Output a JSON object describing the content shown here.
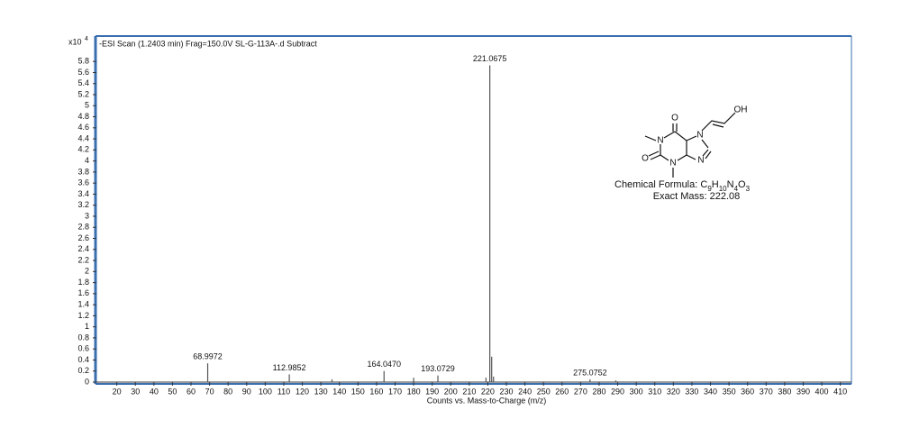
{
  "chart_data": {
    "type": "spectrum",
    "title": "-ESI Scan (1.2403 min) Frag=150.0V SL-G-113A-.d  Subtract",
    "xlabel": "Counts vs. Mass-to-Charge (m/z)",
    "ylabel": "x10",
    "yexponent": "4",
    "color": "#555555",
    "x": [
      68.9972,
      112.9852,
      136.0,
      164.047,
      180.0,
      193.0729,
      219.0,
      221.0675,
      222.07,
      223.07,
      275.0752,
      289.0
    ],
    "values": [
      0.34,
      0.14,
      0.05,
      0.2,
      0.08,
      0.12,
      0.08,
      5.73,
      0.46,
      0.1,
      0.05,
      0.03
    ],
    "peak_labels": [
      "68.9972",
      "112.9852",
      null,
      "164.0470",
      null,
      "193.0729",
      null,
      "221.0675",
      null,
      null,
      "275.0752",
      null
    ],
    "xlim": [
      9,
      416
    ],
    "ylim": [
      0,
      6.26
    ],
    "xticks": [
      20,
      30,
      40,
      50,
      60,
      70,
      80,
      90,
      100,
      110,
      120,
      130,
      140,
      150,
      160,
      170,
      180,
      190,
      200,
      210,
      220,
      230,
      240,
      250,
      260,
      270,
      280,
      290,
      300,
      310,
      320,
      330,
      340,
      350,
      360,
      370,
      380,
      390,
      400,
      410
    ],
    "yticks": [
      0,
      0.2,
      0.4,
      0.6,
      0.8,
      1,
      1.2,
      1.4,
      1.6,
      1.8,
      2,
      2.2,
      2.4,
      2.6,
      2.8,
      3,
      3.2,
      3.4,
      3.6,
      3.8,
      4,
      4.2,
      4.4,
      4.6,
      4.8,
      5,
      5.2,
      5.4,
      5.6,
      5.8
    ],
    "grid": false,
    "structure": {
      "atoms": [
        "O",
        "N",
        "O",
        "N",
        "N",
        "N",
        "OH"
      ],
      "formula_label": "Chemical Formula:",
      "formula": [
        "C",
        "9",
        "H",
        "10",
        "N",
        "4",
        "O",
        "3"
      ],
      "exact_mass": "Exact Mass: 222.08"
    }
  }
}
